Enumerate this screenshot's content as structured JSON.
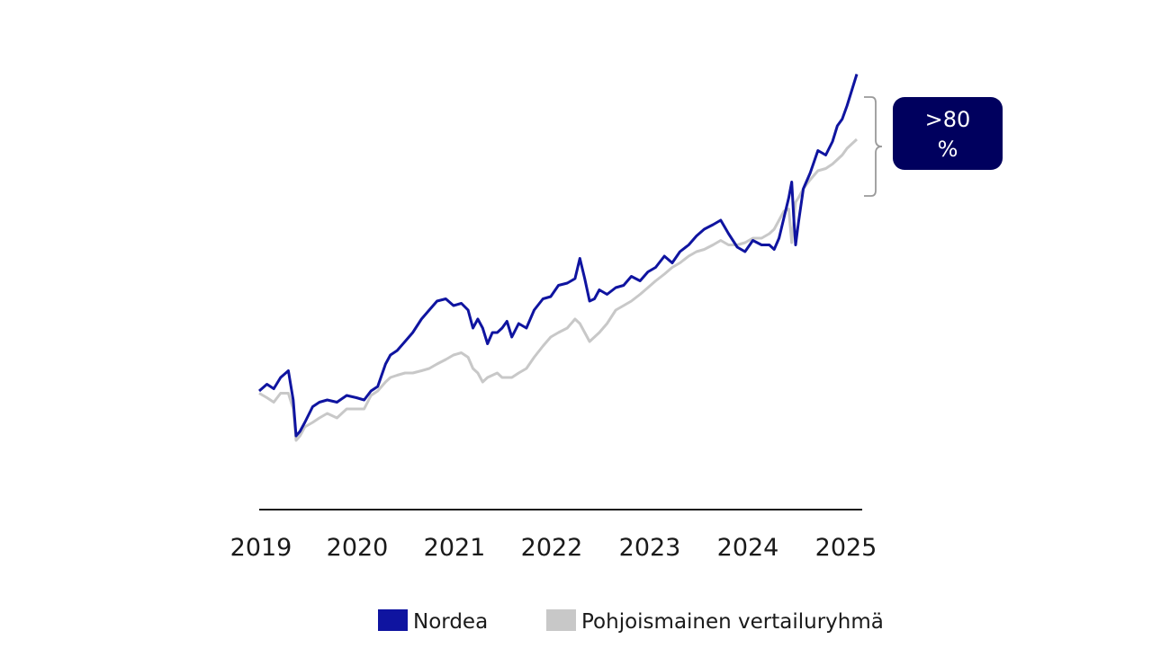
{
  "chart_data": {
    "type": "line",
    "title": "",
    "xlabel": "",
    "ylabel": "",
    "x_ticks": [
      "2019",
      "2020",
      "2021",
      "2022",
      "2023",
      "2024",
      "2025"
    ],
    "xlim": [
      2019.0,
      2025.15
    ],
    "ylim": [
      50,
      250
    ],
    "grid": false,
    "y_axis_visible": false,
    "legend": "bottom",
    "annotation": {
      "line1": ">80",
      "line2": "%"
    },
    "series": [
      {
        "name": "Nordea",
        "color": "#0f14a0",
        "x": [
          2019.0,
          2019.08,
          2019.15,
          2019.22,
          2019.3,
          2019.35,
          2019.38,
          2019.42,
          2019.47,
          2019.55,
          2019.62,
          2019.7,
          2019.8,
          2019.9,
          2020.0,
          2020.08,
          2020.15,
          2020.22,
          2020.3,
          2020.35,
          2020.42,
          2020.5,
          2020.58,
          2020.67,
          2020.75,
          2020.83,
          2020.92,
          2021.0,
          2021.08,
          2021.15,
          2021.2,
          2021.25,
          2021.3,
          2021.35,
          2021.4,
          2021.45,
          2021.5,
          2021.55,
          2021.6,
          2021.67,
          2021.75,
          2021.83,
          2021.92,
          2022.0,
          2022.08,
          2022.17,
          2022.25,
          2022.3,
          2022.35,
          2022.4,
          2022.45,
          2022.5,
          2022.58,
          2022.67,
          2022.75,
          2022.83,
          2022.92,
          2023.0,
          2023.08,
          2023.17,
          2023.25,
          2023.33,
          2023.42,
          2023.5,
          2023.58,
          2023.67,
          2023.75,
          2023.83,
          2023.92,
          2024.0,
          2024.08,
          2024.17,
          2024.25,
          2024.3,
          2024.35,
          2024.4,
          2024.45,
          2024.48,
          2024.5,
          2024.52,
          2024.55,
          2024.6,
          2024.67,
          2024.75,
          2024.83,
          2024.9,
          2024.95,
          2025.0,
          2025.05,
          2025.1,
          2025.15
        ],
        "values": [
          100,
          103,
          101,
          106,
          109,
          96,
          80,
          82,
          86,
          93,
          95,
          96,
          95,
          98,
          97,
          96,
          100,
          102,
          112,
          116,
          118,
          122,
          126,
          132,
          136,
          140,
          141,
          138,
          139,
          136,
          128,
          132,
          128,
          121,
          126,
          126,
          128,
          131,
          124,
          130,
          128,
          136,
          141,
          142,
          147,
          148,
          150,
          159,
          150,
          140,
          141,
          145,
          143,
          146,
          147,
          151,
          149,
          153,
          155,
          160,
          157,
          162,
          165,
          169,
          172,
          174,
          176,
          170,
          164,
          162,
          167,
          165,
          165,
          163,
          168,
          177,
          186,
          193,
          178,
          165,
          175,
          190,
          197,
          207,
          205,
          211,
          218,
          221,
          227,
          234,
          241
        ]
      },
      {
        "name": "Pohjoismainen vertailuryhmä",
        "color": "#c8c8c8",
        "x": [
          2019.0,
          2019.08,
          2019.15,
          2019.22,
          2019.3,
          2019.35,
          2019.38,
          2019.42,
          2019.47,
          2019.55,
          2019.62,
          2019.7,
          2019.8,
          2019.9,
          2020.0,
          2020.08,
          2020.15,
          2020.22,
          2020.3,
          2020.35,
          2020.42,
          2020.5,
          2020.58,
          2020.67,
          2020.75,
          2020.83,
          2020.92,
          2021.0,
          2021.08,
          2021.15,
          2021.2,
          2021.25,
          2021.3,
          2021.35,
          2021.4,
          2021.45,
          2021.5,
          2021.55,
          2021.6,
          2021.67,
          2021.75,
          2021.83,
          2021.92,
          2022.0,
          2022.08,
          2022.17,
          2022.25,
          2022.3,
          2022.35,
          2022.4,
          2022.45,
          2022.5,
          2022.58,
          2022.67,
          2022.75,
          2022.83,
          2022.92,
          2023.0,
          2023.08,
          2023.17,
          2023.25,
          2023.33,
          2023.42,
          2023.5,
          2023.58,
          2023.67,
          2023.75,
          2023.83,
          2023.92,
          2024.0,
          2024.08,
          2024.17,
          2024.25,
          2024.3,
          2024.35,
          2024.4,
          2024.45,
          2024.48,
          2024.5,
          2024.52,
          2024.55,
          2024.6,
          2024.67,
          2024.75,
          2024.83,
          2024.9,
          2024.95,
          2025.0,
          2025.05,
          2025.1,
          2025.15
        ],
        "values": [
          99,
          97,
          95,
          99,
          99,
          92,
          78,
          80,
          84,
          86,
          88,
          90,
          88,
          92,
          92,
          92,
          98,
          100,
          104,
          106,
          107,
          108,
          108,
          109,
          110,
          112,
          114,
          116,
          117,
          115,
          110,
          108,
          104,
          106,
          107,
          108,
          106,
          106,
          106,
          108,
          110,
          115,
          120,
          124,
          126,
          128,
          132,
          130,
          126,
          122,
          124,
          126,
          130,
          136,
          138,
          140,
          143,
          146,
          149,
          152,
          155,
          157,
          160,
          162,
          163,
          165,
          167,
          165,
          165,
          166,
          168,
          168,
          170,
          172,
          176,
          180,
          181,
          166,
          175,
          184,
          186,
          190,
          194,
          198,
          199,
          201,
          203,
          205,
          208,
          210,
          212
        ]
      }
    ]
  }
}
